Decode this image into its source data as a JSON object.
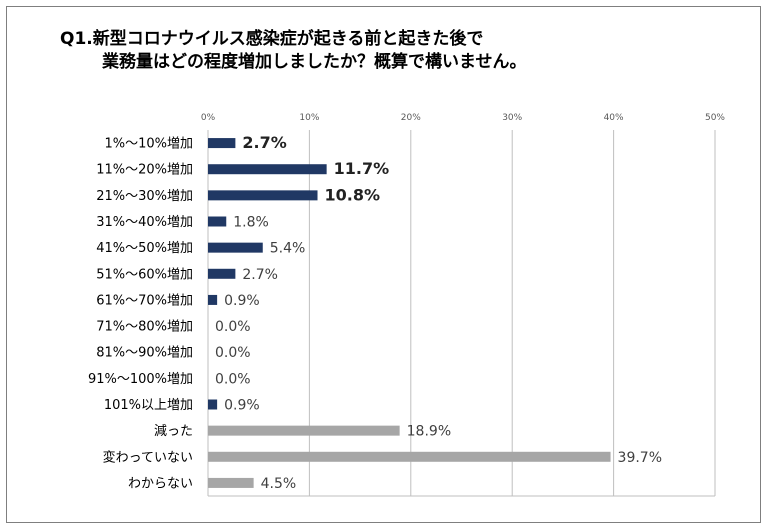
{
  "title": {
    "line1": "Q1.新型コロナウイルス感染症が起きる前と起きた後で",
    "line2": "業務量はどの程度増加しましたか？概算で構いません。"
  },
  "colors": {
    "increase_bar": "#203864",
    "other_bar": "#a6a6a6",
    "grid": "#bfbfbf"
  },
  "chart_data": {
    "type": "bar",
    "orientation": "horizontal",
    "title": "Q1.新型コロナウイルス感染症が起きる前と起きた後で業務量はどの程度増加しましたか？概算で構いません。",
    "categories": [
      "1%～10%増加",
      "11%～20%増加",
      "21%～30%増加",
      "31%～40%増加",
      "41%～50%増加",
      "51%～60%増加",
      "61%～70%増加",
      "71%～80%増加",
      "81%～90%増加",
      "91%～100%増加",
      "101%以上増加",
      "減った",
      "変わっていない",
      "わからない"
    ],
    "values": [
      2.7,
      11.7,
      10.8,
      1.8,
      5.4,
      2.7,
      0.9,
      0.0,
      0.0,
      0.0,
      0.9,
      18.9,
      39.7,
      4.5
    ],
    "value_labels": [
      "2.7%",
      "11.7%",
      "10.8%",
      "1.8%",
      "5.4%",
      "2.7%",
      "0.9%",
      "0.0%",
      "0.0%",
      "0.0%",
      "0.9%",
      "18.9%",
      "39.7%",
      "4.5%"
    ],
    "highlighted": [
      true,
      true,
      true,
      false,
      false,
      false,
      false,
      false,
      false,
      false,
      false,
      false,
      false,
      false
    ],
    "bar_groups": [
      "increase",
      "increase",
      "increase",
      "increase",
      "increase",
      "increase",
      "increase",
      "increase",
      "increase",
      "increase",
      "increase",
      "other",
      "other",
      "other"
    ],
    "xlim": [
      0,
      50
    ],
    "xticks": [
      0,
      10,
      20,
      30,
      40,
      50
    ],
    "xtick_labels": [
      "0%",
      "10%",
      "20%",
      "30%",
      "40%",
      "50%"
    ],
    "xaxis_position": "top",
    "grid": true,
    "legend": "none"
  }
}
